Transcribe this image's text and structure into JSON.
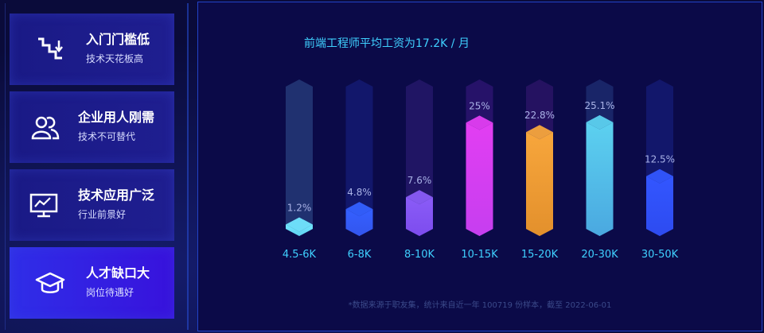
{
  "sidebar": {
    "cards": [
      {
        "title": "入门门槛低",
        "subtitle": "技术天花板高",
        "icon": "stairs-down-icon"
      },
      {
        "title": "企业用人刚需",
        "subtitle": "技术不可替代",
        "icon": "users-icon"
      },
      {
        "title": "技术应用广泛",
        "subtitle": "行业前景好",
        "icon": "monitor-chart-icon"
      },
      {
        "title": "人才缺口大",
        "subtitle": "岗位待遇好",
        "icon": "graduation-cap-icon"
      }
    ],
    "active_index": 3
  },
  "chart_data": {
    "type": "bar",
    "title": "前端工程师平均工资为17.2K / 月",
    "categories": [
      "4.5-6K",
      "6-8K",
      "8-10K",
      "10-15K",
      "15-20K",
      "20-30K",
      "30-50K"
    ],
    "values": [
      1.2,
      4.8,
      7.6,
      25,
      22.8,
      25.1,
      12.5
    ],
    "value_labels": [
      "1.2%",
      "4.8%",
      "7.6%",
      "25%",
      "22.8%",
      "25.1%",
      "12.5%"
    ],
    "ylim": [
      0,
      26
    ],
    "grid": false,
    "colors": {
      "label": "#3fd0ff",
      "value_label": "#a9b2e6",
      "bar_top": [
        "#72e7ff",
        "#3460ff",
        "#8a5cf7",
        "#e23ef2",
        "#f7a63c",
        "#5cd1f0",
        "#3356ff"
      ],
      "bar_bottom": [
        "#5fd2f0",
        "#3355ee",
        "#7d4cee",
        "#c63ef0",
        "#e3902c",
        "#4aa8e0",
        "#2d4bf0"
      ],
      "track": [
        "#243878",
        "#141a72",
        "#24186a",
        "#2c1470",
        "#2a1466",
        "#1c2a6e",
        "#141a72"
      ]
    }
  },
  "footnote": "*数据来源于职友集，统计来自近一年 100719 份样本，截至 2022-06-01"
}
